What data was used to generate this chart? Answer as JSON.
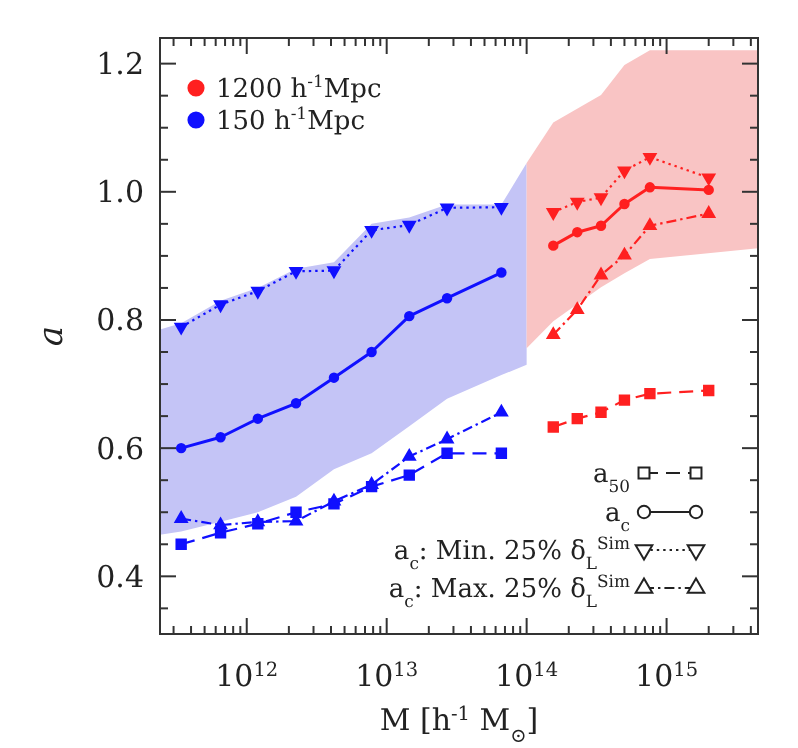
{
  "chart_data": {
    "type": "line",
    "xlabel": "M [h$^{-1}$ M$_{⊙}$]",
    "ylabel": "a",
    "log": "x",
    "xlim": [
      240000000000.0,
      4500000000000000.0
    ],
    "xticks": [
      {
        "value": 1000000000000.0,
        "label": "10$^{12}$"
      },
      {
        "value": 10000000000000.0,
        "label": "10$^{13}$"
      },
      {
        "value": 100000000000000.0,
        "label": "10$^{14}$"
      },
      {
        "value": 1000000000000000.0,
        "label": "10$^{15}$"
      }
    ],
    "ylim": [
      0.31,
      1.24
    ],
    "yticks": [
      0.4,
      0.6,
      0.8,
      {
        "value": 1.0,
        "label": "1.0"
      },
      1.2
    ],
    "legend": "top left",
    "series": [
      {
        "type": "area",
        "color": "#c4c4f6",
        "x": [
          240000000000.0,
          340000000000.0,
          650000000000.0,
          1200000000000.0,
          2250000000000.0,
          4200000000000.0,
          7800000000000.0,
          14500000000000.0,
          27000000000000.0,
          66000000000000.0,
          100000000000000.0
        ],
        "values": [
          null,
          null,
          null,
          null,
          null,
          null,
          null,
          null,
          null,
          null,
          null
        ],
        "lower": [
          0.465,
          0.47,
          0.485,
          0.5,
          0.524,
          0.567,
          0.592,
          0.634,
          0.677,
          0.714,
          0.73
        ],
        "upper": [
          0.785,
          0.795,
          0.83,
          0.85,
          0.88,
          0.89,
          0.95,
          0.96,
          0.98,
          0.98,
          1.045
        ]
      },
      {
        "type": "area",
        "color": "#f9c4c4",
        "x": [
          100000000000000.0,
          155000000000000.0,
          340000000000000.0,
          500000000000000.0,
          760000000000000.0,
          4500000000000000.0
        ],
        "values": [
          null,
          null,
          null,
          null,
          null,
          null
        ],
        "lower": [
          0.756,
          0.798,
          0.851,
          0.873,
          0.895,
          0.912
        ],
        "upper": [
          1.045,
          1.108,
          1.151,
          1.198,
          1.221,
          1.221
        ]
      },
      {
        "color": "#1010ff",
        "marker": "square",
        "line_style": "dashed",
        "x": [
          340000000000.0,
          650000000000.0,
          1200000000000.0,
          2250000000000.0,
          4200000000000.0,
          7800000000000.0,
          14500000000000.0,
          27000000000000.0,
          66000000000000.0
        ],
        "values": [
          0.45,
          0.468,
          0.482,
          0.5,
          0.513,
          0.54,
          0.558,
          0.592,
          0.592
        ]
      },
      {
        "name": "150 h$^{-1}$Mpc",
        "color": "#1010ff",
        "marker": "circle",
        "line_style": "solid",
        "x": [
          340000000000.0,
          650000000000.0,
          1200000000000.0,
          2250000000000.0,
          4200000000000.0,
          7800000000000.0,
          14500000000000.0,
          27000000000000.0,
          66000000000000.0
        ],
        "values": [
          0.6,
          0.617,
          0.646,
          0.67,
          0.71,
          0.75,
          0.806,
          0.834,
          0.874
        ]
      },
      {
        "color": "#1010ff",
        "marker": "triangle-down",
        "line_style": "dotted",
        "x": [
          340000000000.0,
          650000000000.0,
          1200000000000.0,
          2250000000000.0,
          4200000000000.0,
          7800000000000.0,
          14500000000000.0,
          27000000000000.0,
          66000000000000.0
        ],
        "values": [
          0.789,
          0.824,
          0.845,
          0.876,
          0.877,
          0.94,
          0.948,
          0.975,
          0.976
        ]
      },
      {
        "color": "#1010ff",
        "marker": "triangle",
        "line_style": "dashdot",
        "x": [
          340000000000.0,
          650000000000.0,
          1200000000000.0,
          2250000000000.0,
          4200000000000.0,
          7800000000000.0,
          14500000000000.0,
          27000000000000.0,
          66000000000000.0
        ],
        "values": [
          0.49,
          0.48,
          0.485,
          0.486,
          0.517,
          0.543,
          0.587,
          0.614,
          0.656
        ]
      },
      {
        "color": "#ff2020",
        "marker": "square",
        "line_style": "dashed",
        "x": [
          155000000000000.0,
          230000000000000.0,
          340000000000000.0,
          500000000000000.0,
          760000000000000.0,
          2000000000000000.0
        ],
        "values": [
          0.633,
          0.646,
          0.656,
          0.675,
          0.685,
          0.69
        ]
      },
      {
        "name": "1200 h$^{-1}$Mpc",
        "color": "#ff2020",
        "marker": "circle",
        "line_style": "solid",
        "x": [
          155000000000000.0,
          230000000000000.0,
          340000000000000.0,
          500000000000000.0,
          760000000000000.0,
          2000000000000000.0
        ],
        "values": [
          0.916,
          0.937,
          0.947,
          0.981,
          1.007,
          1.003
        ]
      },
      {
        "color": "#ff2020",
        "marker": "triangle-down",
        "line_style": "dotted",
        "x": [
          155000000000000.0,
          230000000000000.0,
          340000000000000.0,
          500000000000000.0,
          760000000000000.0,
          2000000000000000.0
        ],
        "values": [
          0.968,
          0.984,
          0.991,
          1.033,
          1.054,
          1.022
        ]
      },
      {
        "color": "#ff2020",
        "marker": "triangle",
        "line_style": "dashdot",
        "x": [
          155000000000000.0,
          230000000000000.0,
          340000000000000.0,
          500000000000000.0,
          760000000000000.0,
          2000000000000000.0
        ],
        "values": [
          0.777,
          0.816,
          0.87,
          0.901,
          0.947,
          0.966
        ]
      }
    ],
    "annotations": [
      "a$_{50}$",
      "a$_{c}$",
      "a$_{c}$: Min. 25% δ$_{L}$$^{Sim}$",
      "a$_{c}$: Max. 25% δ$_{L}$$^{Sim}$"
    ]
  }
}
